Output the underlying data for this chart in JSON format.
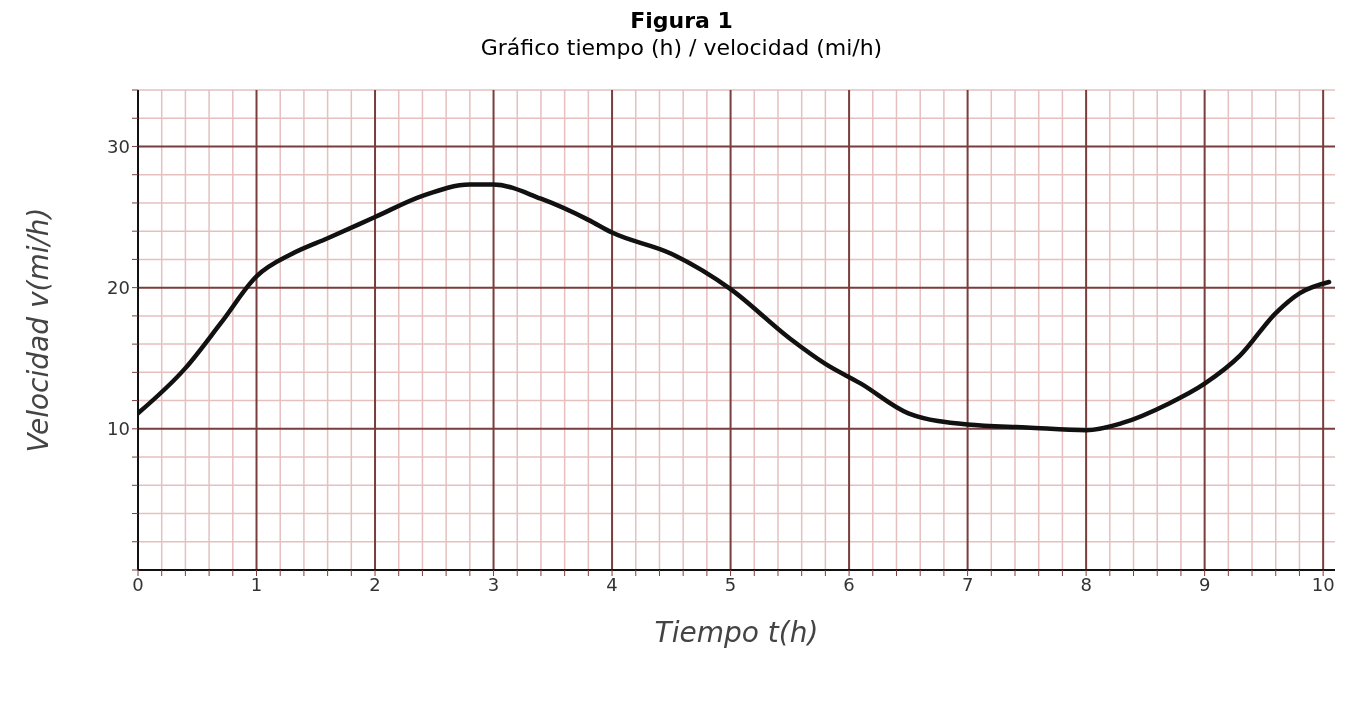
{
  "chart_data": {
    "type": "line",
    "title": "Figura 1",
    "subtitle": "Gráfico tiempo (h) / velocidad (mi/h)",
    "xlabel": "Tiempo t(h)",
    "ylabel": "Velocidad v(mi/h)",
    "x": [
      0,
      0.4,
      0.7,
      1,
      1.3,
      1.6,
      2,
      2.4,
      2.8,
      3,
      3.4,
      3.8,
      4,
      4.5,
      5,
      5.5,
      5.8,
      6.1,
      6.5,
      7,
      7.5,
      8,
      8.3,
      8.7,
      9,
      9.3,
      9.6,
      9.8,
      10.05
    ],
    "series": [
      {
        "color": "#111111",
        "values": [
          11.1,
          14.3,
          17.5,
          20.8,
          22.4,
          23.5,
          25,
          26.5,
          27.3,
          27.3,
          26.3,
          24.8,
          23.9,
          22.4,
          19.9,
          16.4,
          14.6,
          13.2,
          11.1,
          10.3,
          10.1,
          9.9,
          10.4,
          11.8,
          13.2,
          15.2,
          18.2,
          19.6,
          20.4
        ]
      }
    ],
    "xlim": [
      0,
      10.1
    ],
    "ylim": [
      0,
      34
    ],
    "xticks": [
      0,
      {
        "value": 0.2,
        "label": null
      },
      {
        "value": 0.4,
        "label": null
      },
      {
        "value": 0.6,
        "label": null
      },
      {
        "value": 0.8,
        "label": null
      },
      1,
      {
        "value": 1.2,
        "label": null
      },
      {
        "value": 1.4,
        "label": null
      },
      {
        "value": 1.6,
        "label": null
      },
      {
        "value": 1.8,
        "label": null
      },
      2,
      {
        "value": 2.2,
        "label": null
      },
      {
        "value": 2.4,
        "label": null
      },
      {
        "value": 2.6,
        "label": null
      },
      {
        "value": 2.8,
        "label": null
      },
      3,
      {
        "value": 3.2,
        "label": null
      },
      {
        "value": 3.4,
        "label": null
      },
      {
        "value": 3.6,
        "label": null
      },
      {
        "value": 3.8,
        "label": null
      },
      4,
      {
        "value": 4.2,
        "label": null
      },
      {
        "value": 4.4,
        "label": null
      },
      {
        "value": 4.6,
        "label": null
      },
      {
        "value": 4.8,
        "label": null
      },
      5,
      {
        "value": 5.2,
        "label": null
      },
      {
        "value": 5.4,
        "label": null
      },
      {
        "value": 5.6,
        "label": null
      },
      {
        "value": 5.8,
        "label": null
      },
      6,
      {
        "value": 6.2,
        "label": null
      },
      {
        "value": 6.4,
        "label": null
      },
      {
        "value": 6.6,
        "label": null
      },
      {
        "value": 6.8,
        "label": null
      },
      7,
      {
        "value": 7.2,
        "label": null
      },
      {
        "value": 7.4,
        "label": null
      },
      {
        "value": 7.6,
        "label": null
      },
      {
        "value": 7.8,
        "label": null
      },
      8,
      {
        "value": 8.2,
        "label": null
      },
      {
        "value": 8.4,
        "label": null
      },
      {
        "value": 8.6,
        "label": null
      },
      {
        "value": 8.8,
        "label": null
      },
      9,
      {
        "value": 9.2,
        "label": null
      },
      {
        "value": 9.4,
        "label": null
      },
      {
        "value": 9.6,
        "label": null
      },
      {
        "value": 9.8,
        "label": null
      },
      10
    ],
    "yticks": [
      {
        "value": 0,
        "label": null
      },
      {
        "value": 2,
        "label": null
      },
      {
        "value": 4,
        "label": null
      },
      {
        "value": 6,
        "label": null
      },
      {
        "value": 8,
        "label": null
      },
      10,
      {
        "value": 12,
        "label": null
      },
      {
        "value": 14,
        "label": null
      },
      {
        "value": 16,
        "label": null
      },
      {
        "value": 18,
        "label": null
      },
      20,
      {
        "value": 22,
        "label": null
      },
      {
        "value": 24,
        "label": null
      },
      {
        "value": 26,
        "label": null
      },
      {
        "value": 28,
        "label": null
      },
      30,
      {
        "value": 32,
        "label": null
      },
      {
        "value": 34,
        "label": null
      }
    ],
    "grid": true,
    "marker": "none",
    "line_style": "solid"
  }
}
